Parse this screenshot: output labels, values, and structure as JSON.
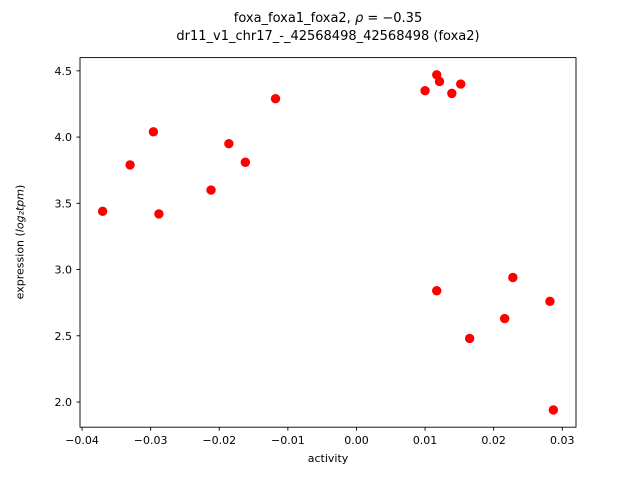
{
  "chart_data": {
    "type": "scatter",
    "title_prefix": "foxa_foxa1_foxa2, ",
    "title_rho": "ρ",
    "title_rho_value": " = −0.35",
    "title_line2": "dr11_v1_chr17_-_42568498_42568498 (foxa2)",
    "xlabel": "activity",
    "ylabel_prefix": "expression (",
    "ylabel_math": "log₂tpm",
    "ylabel_suffix": ")",
    "marker_color": "#ff0000",
    "background_color": "#ffffff",
    "axis_color": "#000000",
    "grid": false,
    "legend": "none",
    "xlim": [
      -0.0403,
      0.032
    ],
    "ylim": [
      1.81,
      4.6
    ],
    "xticks": [
      -0.04,
      -0.03,
      -0.02,
      -0.01,
      0.0,
      0.01,
      0.02,
      0.03
    ],
    "xtick_labels": [
      "−0.04",
      "−0.03",
      "−0.02",
      "−0.01",
      "0.00",
      "0.01",
      "0.02",
      "0.03"
    ],
    "yticks": [
      2.0,
      2.5,
      3.0,
      3.5,
      4.0,
      4.5
    ],
    "ytick_labels": [
      "2.0",
      "2.5",
      "3.0",
      "3.5",
      "4.0",
      "4.5"
    ],
    "points": [
      [
        -0.037,
        3.44
      ],
      [
        -0.033,
        3.79
      ],
      [
        -0.0296,
        4.04
      ],
      [
        -0.0288,
        3.42
      ],
      [
        -0.0212,
        3.6
      ],
      [
        -0.0186,
        3.95
      ],
      [
        -0.0162,
        3.81
      ],
      [
        -0.0118,
        4.29
      ],
      [
        0.01,
        4.35
      ],
      [
        0.0117,
        4.47
      ],
      [
        0.0121,
        4.42
      ],
      [
        0.0139,
        4.33
      ],
      [
        0.0152,
        4.4
      ],
      [
        0.0117,
        2.84
      ],
      [
        0.0165,
        2.48
      ],
      [
        0.0216,
        2.63
      ],
      [
        0.0228,
        2.94
      ],
      [
        0.0282,
        2.76
      ],
      [
        0.0287,
        1.94
      ]
    ]
  }
}
